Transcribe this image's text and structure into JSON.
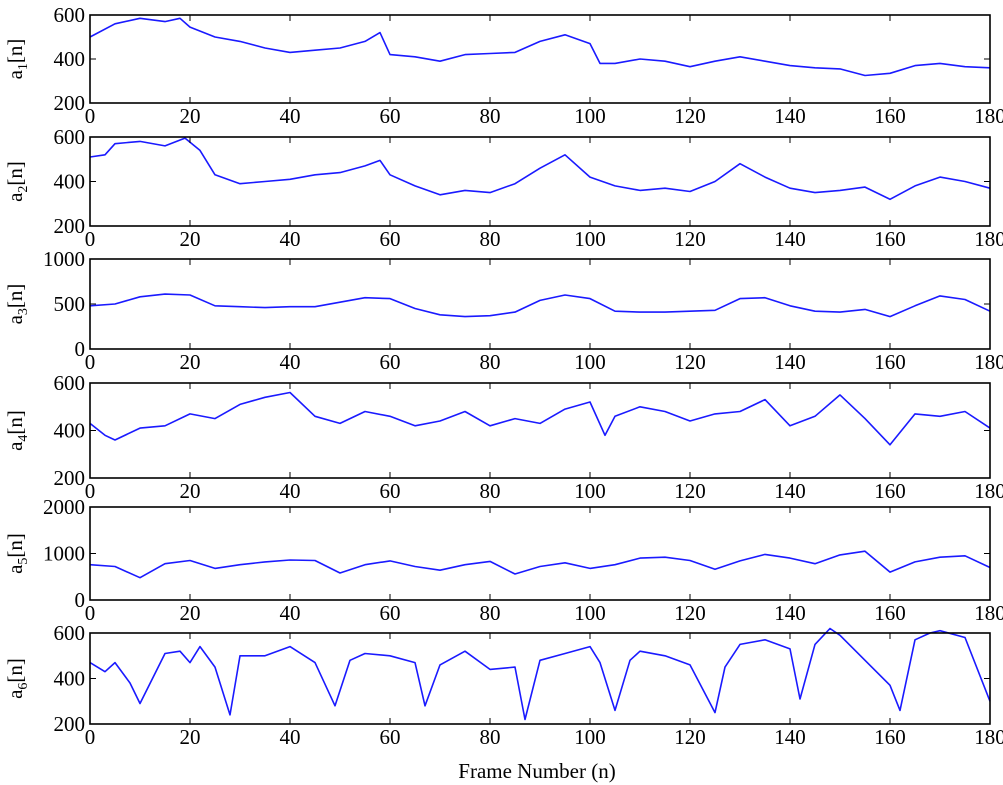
{
  "figure": {
    "xlabel": "Frame Number (n)",
    "line_color": "#1a1aff"
  },
  "chart_data": [
    {
      "type": "line",
      "ylabel_base": "a",
      "ylabel_sub": "1",
      "ylabel_suffix": "[n]",
      "xlim": [
        0,
        180
      ],
      "ylim": [
        200,
        600
      ],
      "xticks": [
        0,
        20,
        40,
        60,
        80,
        100,
        120,
        140,
        160,
        180
      ],
      "yticks": [
        200,
        400,
        600
      ],
      "grid": false,
      "x": [
        0,
        5,
        10,
        15,
        18,
        20,
        25,
        30,
        35,
        40,
        45,
        50,
        55,
        58,
        60,
        65,
        70,
        75,
        80,
        85,
        90,
        95,
        100,
        102,
        105,
        110,
        115,
        120,
        125,
        130,
        135,
        140,
        145,
        150,
        155,
        160,
        165,
        170,
        175,
        180
      ],
      "y": [
        500,
        560,
        585,
        570,
        585,
        545,
        500,
        480,
        450,
        430,
        440,
        450,
        480,
        520,
        420,
        410,
        390,
        420,
        425,
        430,
        480,
        510,
        470,
        380,
        380,
        400,
        390,
        365,
        390,
        410,
        390,
        370,
        360,
        355,
        325,
        335,
        370,
        380,
        365,
        360
      ]
    },
    {
      "type": "line",
      "ylabel_base": "a",
      "ylabel_sub": "2",
      "ylabel_suffix": "[n]",
      "xlim": [
        0,
        180
      ],
      "ylim": [
        200,
        600
      ],
      "xticks": [
        0,
        20,
        40,
        60,
        80,
        100,
        120,
        140,
        160,
        180
      ],
      "yticks": [
        200,
        400,
        600
      ],
      "grid": false,
      "x": [
        0,
        3,
        5,
        10,
        15,
        19,
        22,
        25,
        30,
        35,
        40,
        45,
        50,
        55,
        58,
        60,
        65,
        70,
        75,
        80,
        85,
        90,
        95,
        100,
        105,
        110,
        115,
        120,
        125,
        130,
        135,
        140,
        145,
        150,
        155,
        160,
        165,
        170,
        175,
        180
      ],
      "y": [
        510,
        520,
        570,
        580,
        560,
        595,
        540,
        430,
        390,
        400,
        410,
        430,
        440,
        470,
        495,
        430,
        380,
        340,
        360,
        350,
        390,
        460,
        520,
        420,
        380,
        360,
        370,
        355,
        400,
        480,
        420,
        370,
        350,
        360,
        375,
        320,
        380,
        420,
        400,
        370
      ]
    },
    {
      "type": "line",
      "ylabel_base": "a",
      "ylabel_sub": "3",
      "ylabel_suffix": "[n]",
      "xlim": [
        0,
        180
      ],
      "ylim": [
        0,
        1000
      ],
      "xticks": [
        0,
        20,
        40,
        60,
        80,
        100,
        120,
        140,
        160,
        180
      ],
      "yticks": [
        0,
        500,
        1000
      ],
      "grid": false,
      "x": [
        0,
        5,
        10,
        15,
        20,
        25,
        30,
        35,
        40,
        45,
        50,
        55,
        60,
        65,
        70,
        75,
        80,
        85,
        90,
        95,
        100,
        105,
        110,
        115,
        120,
        125,
        130,
        135,
        140,
        145,
        150,
        155,
        160,
        165,
        170,
        175,
        180
      ],
      "y": [
        480,
        500,
        580,
        610,
        600,
        480,
        470,
        460,
        470,
        470,
        520,
        570,
        560,
        450,
        380,
        360,
        370,
        410,
        540,
        600,
        560,
        420,
        410,
        410,
        420,
        430,
        560,
        570,
        480,
        420,
        410,
        440,
        360,
        480,
        590,
        550,
        420
      ]
    },
    {
      "type": "line",
      "ylabel_base": "a",
      "ylabel_sub": "4",
      "ylabel_suffix": "[n]",
      "xlim": [
        0,
        180
      ],
      "ylim": [
        200,
        600
      ],
      "xticks": [
        0,
        20,
        40,
        60,
        80,
        100,
        120,
        140,
        160,
        180
      ],
      "yticks": [
        200,
        400,
        600
      ],
      "grid": false,
      "x": [
        0,
        3,
        5,
        10,
        15,
        20,
        25,
        30,
        35,
        40,
        45,
        50,
        55,
        60,
        65,
        70,
        75,
        80,
        85,
        90,
        95,
        100,
        103,
        105,
        110,
        115,
        120,
        125,
        130,
        135,
        140,
        145,
        150,
        155,
        160,
        165,
        170,
        175,
        180
      ],
      "y": [
        430,
        380,
        360,
        410,
        420,
        470,
        450,
        510,
        540,
        560,
        460,
        430,
        480,
        460,
        420,
        440,
        480,
        420,
        450,
        430,
        490,
        520,
        380,
        460,
        500,
        480,
        440,
        470,
        480,
        530,
        420,
        460,
        550,
        450,
        340,
        470,
        460,
        480,
        410
      ]
    },
    {
      "type": "line",
      "ylabel_base": "a",
      "ylabel_sub": "5",
      "ylabel_suffix": "[n]",
      "xlim": [
        0,
        180
      ],
      "ylim": [
        0,
        2000
      ],
      "xticks": [
        0,
        20,
        40,
        60,
        80,
        100,
        120,
        140,
        160,
        180
      ],
      "yticks": [
        0,
        1000,
        2000
      ],
      "grid": false,
      "x": [
        0,
        5,
        10,
        15,
        20,
        25,
        30,
        35,
        40,
        45,
        50,
        55,
        60,
        65,
        70,
        75,
        80,
        85,
        90,
        95,
        100,
        105,
        110,
        115,
        120,
        125,
        130,
        135,
        140,
        145,
        150,
        155,
        160,
        165,
        170,
        175,
        180
      ],
      "y": [
        760,
        720,
        480,
        780,
        850,
        680,
        760,
        820,
        860,
        850,
        580,
        760,
        840,
        720,
        640,
        760,
        830,
        560,
        720,
        800,
        680,
        760,
        900,
        920,
        850,
        660,
        840,
        980,
        900,
        780,
        970,
        1050,
        600,
        820,
        920,
        950,
        700
      ]
    },
    {
      "type": "line",
      "ylabel_base": "a",
      "ylabel_sub": "6",
      "ylabel_suffix": "[n]",
      "xlim": [
        0,
        180
      ],
      "ylim": [
        200,
        600
      ],
      "xticks": [
        0,
        20,
        40,
        60,
        80,
        100,
        120,
        140,
        160,
        180
      ],
      "yticks": [
        200,
        400,
        600
      ],
      "grid": false,
      "x": [
        0,
        3,
        5,
        8,
        10,
        15,
        18,
        20,
        22,
        25,
        28,
        30,
        35,
        40,
        45,
        49,
        52,
        55,
        60,
        65,
        67,
        70,
        75,
        80,
        85,
        87,
        90,
        95,
        100,
        102,
        105,
        108,
        110,
        115,
        120,
        125,
        127,
        130,
        135,
        140,
        142,
        145,
        148,
        150,
        155,
        160,
        162,
        165,
        168,
        170,
        175,
        180
      ],
      "y": [
        470,
        430,
        470,
        380,
        290,
        510,
        520,
        470,
        540,
        450,
        240,
        500,
        500,
        540,
        470,
        280,
        480,
        510,
        500,
        470,
        280,
        460,
        520,
        440,
        450,
        220,
        480,
        510,
        540,
        470,
        260,
        480,
        520,
        500,
        460,
        250,
        450,
        550,
        570,
        530,
        310,
        550,
        620,
        590,
        480,
        370,
        260,
        570,
        600,
        610,
        580,
        300
      ]
    }
  ]
}
